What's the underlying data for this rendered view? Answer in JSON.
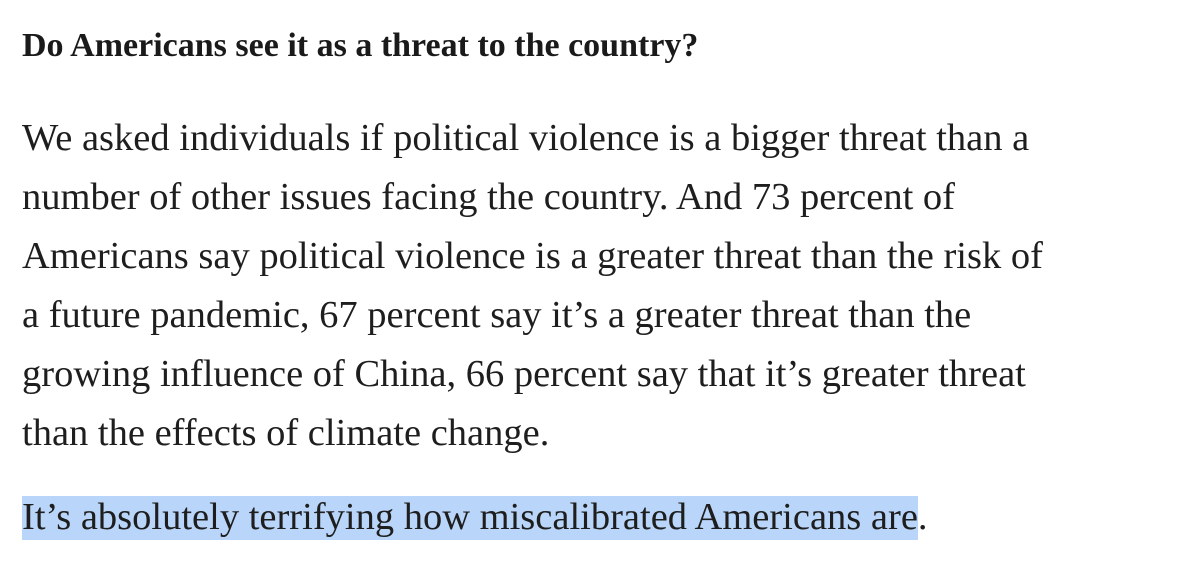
{
  "heading": "Do Americans see it as a threat to the country?",
  "paragraph_lines": [
    "We asked individuals if political violence is a bigger threat than a",
    "number of other issues facing the country. And 73 percent of",
    "Americans say political violence is a greater threat than the risk of",
    "a future pandemic, 67 percent say it’s a greater threat than the",
    "growing influence of China, 66 percent say that it’s greater threat",
    "than the effects of climate change."
  ],
  "closing": {
    "highlighted_text": "It’s absolutely terrifying how miscalibrated Americans are",
    "trailing_text": ".",
    "highlight_color": "#b9d6fa"
  }
}
